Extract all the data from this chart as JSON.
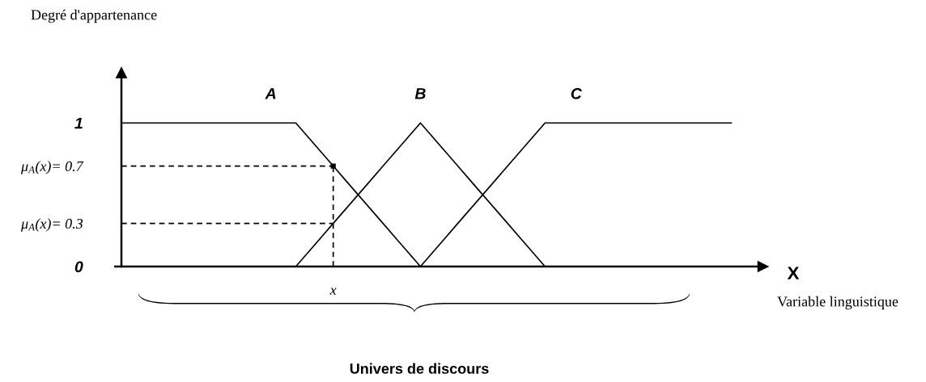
{
  "chart_data": {
    "type": "line",
    "ylabel": "Degré d'appartenance",
    "xlabel": "X",
    "annotations": [
      "Variable linguistique",
      "Univers de discours"
    ],
    "categories": [
      null,
      null,
      null,
      null,
      null,
      null,
      null,
      null,
      null,
      null,
      null,
      null,
      null,
      null,
      null,
      null,
      null,
      "x",
      null,
      null,
      null,
      null,
      null,
      null,
      null,
      null,
      null,
      null,
      null,
      null,
      null,
      null,
      null,
      null,
      null,
      null,
      null,
      null,
      null,
      null,
      null,
      null,
      null,
      null,
      null,
      null,
      null,
      null,
      null,
      null,
      null,
      null
    ],
    "series": [
      {
        "name": "A",
        "color": "#000000",
        "values": [
          1,
          1,
          1,
          1,
          1,
          1,
          1,
          1,
          1,
          1,
          1,
          1,
          1,
          1,
          1,
          0.9,
          0.8,
          0.7,
          0.6,
          0.5,
          0.4,
          0.3,
          0.2,
          0.1,
          0,
          null,
          null,
          null,
          null,
          null,
          null,
          null,
          null,
          null,
          null,
          null,
          null,
          null,
          null,
          null,
          null,
          null,
          null,
          null,
          null,
          null,
          null,
          null,
          null,
          null,
          null,
          null
        ]
      },
      {
        "name": "B",
        "color": "#000000",
        "values": [
          null,
          null,
          null,
          null,
          null,
          null,
          null,
          null,
          null,
          null,
          null,
          null,
          null,
          null,
          0,
          0.1,
          0.2,
          0.3,
          0.4,
          0.5,
          0.6,
          0.7,
          0.8,
          0.9,
          1,
          0.9,
          0.8,
          0.7,
          0.6,
          0.5,
          0.4,
          0.3,
          0.2,
          0.1,
          0,
          null,
          null,
          null,
          null,
          null,
          null,
          null,
          null,
          null,
          null,
          null,
          null,
          null,
          null,
          null,
          null,
          null
        ]
      },
      {
        "name": "C",
        "color": "#000000",
        "values": [
          null,
          null,
          null,
          null,
          null,
          null,
          null,
          null,
          null,
          null,
          null,
          null,
          null,
          null,
          null,
          null,
          null,
          null,
          null,
          null,
          null,
          null,
          null,
          null,
          0,
          0.1,
          0.2,
          0.3,
          0.4,
          0.5,
          0.6,
          0.7,
          0.8,
          0.9,
          1,
          1,
          1,
          1,
          1,
          1,
          1,
          1,
          1,
          1,
          1,
          1,
          1,
          1,
          1,
          1,
          null,
          null
        ]
      },
      {
        "color": "#000000",
        "line_style": "dashed",
        "values": [
          0.7,
          0.7,
          0.7,
          0.7,
          0.7,
          0.7,
          0.7,
          0.7,
          0.7,
          0.7,
          0.7,
          0.7,
          0.7,
          0.7,
          0.7,
          0.7,
          0.7,
          0.7,
          null,
          null,
          null,
          null,
          null,
          null,
          null,
          null,
          null,
          null,
          null,
          null,
          null,
          null,
          null,
          null,
          null,
          null,
          null,
          null,
          null,
          null,
          null,
          null,
          null,
          null,
          null,
          null,
          null,
          null,
          null,
          null,
          null,
          null
        ]
      },
      {
        "color": "#000000",
        "line_style": "dashed",
        "values": [
          0.3,
          0.3,
          0.3,
          0.3,
          0.3,
          0.3,
          0.3,
          0.3,
          0.3,
          0.3,
          0.3,
          0.3,
          0.3,
          0.3,
          0.3,
          0.3,
          0.3,
          0.3,
          null,
          null,
          null,
          null,
          null,
          null,
          null,
          null,
          null,
          null,
          null,
          null,
          null,
          null,
          null,
          null,
          null,
          null,
          null,
          null,
          null,
          null,
          null,
          null,
          null,
          null,
          null,
          null,
          null,
          null,
          null,
          null,
          null,
          null
        ]
      },
      {
        "type": "lollipop",
        "color": "#000000",
        "line_style": "dashed",
        "marker": "square",
        "values": [
          null,
          null,
          null,
          null,
          null,
          null,
          null,
          null,
          null,
          null,
          null,
          null,
          null,
          null,
          null,
          null,
          null,
          0.7,
          null,
          null,
          null,
          null,
          null,
          null,
          null,
          null,
          null,
          null,
          null,
          null,
          null,
          null,
          null,
          null,
          null,
          null,
          null,
          null,
          null,
          null,
          null,
          null,
          null,
          null,
          null,
          null,
          null,
          null,
          null,
          null,
          null,
          null
        ]
      }
    ],
    "ylim": [
      0,
      1.35
    ],
    "yticks": [
      0,
      {
        "value": 0.3,
        "label": "μ$_{A}$(x)= 0.3"
      },
      {
        "value": 0.7,
        "label": "μ$_{A}$(x)= 0.7"
      },
      1
    ],
    "line_style": "solid"
  }
}
